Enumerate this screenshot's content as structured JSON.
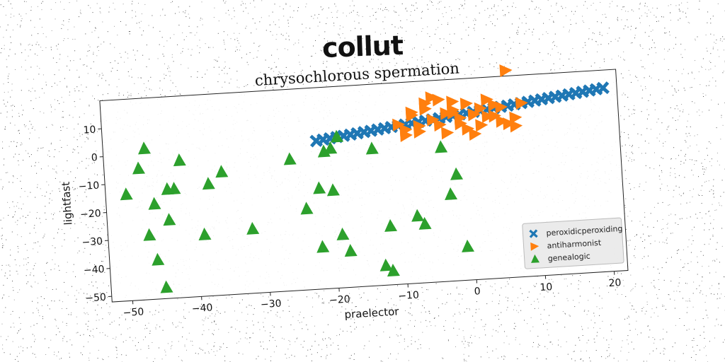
{
  "suptitle": "collut",
  "chart_data": {
    "type": "scatter",
    "title": "chrysochlorous spermation",
    "xlabel": "praelector",
    "ylabel": "lightfast",
    "xlim": [
      -53,
      22
    ],
    "ylim": [
      -52,
      20
    ],
    "xticks": [
      -50,
      -40,
      -30,
      -20,
      -10,
      0,
      10,
      20
    ],
    "xtick_labels": [
      "−50",
      "−40",
      "−30",
      "−20",
      "−10",
      "0",
      "10",
      "20"
    ],
    "yticks": [
      -50,
      -40,
      -30,
      -20,
      -10,
      0,
      10
    ],
    "ytick_labels": [
      "−50",
      "−40",
      "−30",
      "−20",
      "−10",
      "0",
      "10"
    ],
    "grid": false,
    "legend_position": "lower-right",
    "series": [
      {
        "name": "peroxidicperoxiding",
        "marker": "x",
        "color": "#1f77b4",
        "x": [
          -22,
          -21,
          -20,
          -19,
          -18,
          -17,
          -16,
          -15,
          -14,
          -13,
          -12,
          -11,
          -10,
          -9,
          -8,
          -7,
          -6,
          -5,
          -4,
          -3,
          -2,
          -1,
          0,
          1,
          2,
          3,
          4,
          5,
          6,
          7,
          8,
          9,
          10,
          11,
          12,
          13,
          14,
          15,
          16,
          17,
          18,
          19,
          20
        ],
        "y": [
          1,
          1.3,
          1.6,
          1.9,
          2.2,
          2.5,
          2.8,
          3.1,
          3.4,
          3.7,
          4,
          4.3,
          4.6,
          4.9,
          5.2,
          5.5,
          5.8,
          6.1,
          6.4,
          6.7,
          7,
          7.3,
          7.6,
          7.9,
          8.2,
          8.5,
          8.8,
          9.1,
          9.4,
          9.7,
          10,
          10.3,
          10.6,
          10.9,
          11.2,
          11.5,
          11.8,
          12.1,
          12.4,
          12.7,
          13,
          13.3,
          13.6
        ]
      },
      {
        "name": "antiharmonist",
        "marker": ">",
        "color": "#ff7f0e",
        "x": [
          -10,
          -9,
          -8,
          -7,
          -6,
          -5,
          -4,
          -3,
          -2,
          -1,
          0,
          1,
          2,
          3,
          4,
          5,
          6,
          7,
          8,
          -9,
          -6,
          -4,
          -2,
          1,
          3,
          6,
          -7,
          -3,
          0,
          4,
          7,
          -5,
          -1,
          2,
          5,
          -8,
          -2,
          1
        ],
        "y": [
          5,
          3,
          8,
          2,
          10,
          6,
          13,
          1,
          9,
          4,
          11,
          7,
          3,
          12,
          6,
          9,
          22,
          2,
          10,
          1,
          12,
          4,
          8,
          0,
          6,
          3,
          4,
          8,
          2,
          10,
          5,
          14,
          6,
          9,
          4,
          9,
          12,
          7
        ]
      },
      {
        "name": "genealogic",
        "marker": "^",
        "color": "#2ca02c",
        "x": [
          -50,
          -48,
          -47,
          -46,
          -45,
          -44,
          -43,
          -42,
          -39,
          -36,
          -32,
          -26,
          -24,
          -22,
          -21,
          -20,
          -19,
          -18,
          -14,
          -13,
          -12,
          -8,
          -7,
          -4,
          -3,
          -2,
          -1,
          -46,
          -38,
          -20,
          -19,
          -12,
          -22,
          -44,
          -47
        ],
        "y": [
          -14,
          -5,
          -29,
          -38,
          -48,
          -24,
          -13,
          -3,
          -30,
          -8,
          -29,
          -5,
          -23,
          -16,
          -3,
          -17,
          -33,
          -39,
          -3,
          -45,
          -47,
          -28,
          -31,
          -4,
          -21,
          -14,
          -40,
          -18,
          -12,
          -2,
          2,
          -31,
          -37,
          -13,
          2
        ]
      }
    ]
  }
}
